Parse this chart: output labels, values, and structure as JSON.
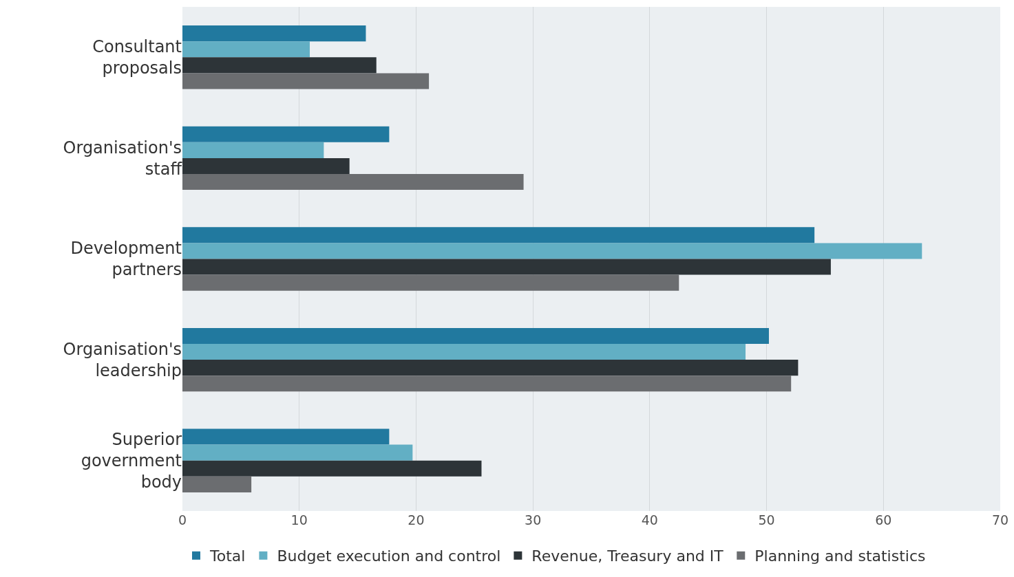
{
  "chart_data": {
    "type": "bar",
    "orientation": "horizontal",
    "categories": [
      "Consultant proposals",
      "Organisation's staff",
      "Development partners",
      "Organisation's leadership",
      "Superior government body"
    ],
    "series": [
      {
        "name": "Total",
        "color": "#21799f",
        "values": [
          15.7,
          17.7,
          54.1,
          50.2,
          17.7
        ]
      },
      {
        "name": "Budget execution and control",
        "color": "#62afc4",
        "values": [
          10.9,
          12.1,
          63.3,
          48.2,
          19.7
        ]
      },
      {
        "name": "Revenue, Treasury and IT",
        "color": "#2d3438",
        "values": [
          16.6,
          14.3,
          55.5,
          52.7,
          25.6
        ]
      },
      {
        "name": "Planning and statistics",
        "color": "#6b6d70",
        "values": [
          21.1,
          29.2,
          42.5,
          52.1,
          5.9
        ]
      }
    ],
    "xlim": [
      0,
      70
    ],
    "xticks": [
      0,
      10,
      20,
      30,
      40,
      50,
      60,
      70
    ],
    "grid": "x",
    "legend": "bottom"
  }
}
